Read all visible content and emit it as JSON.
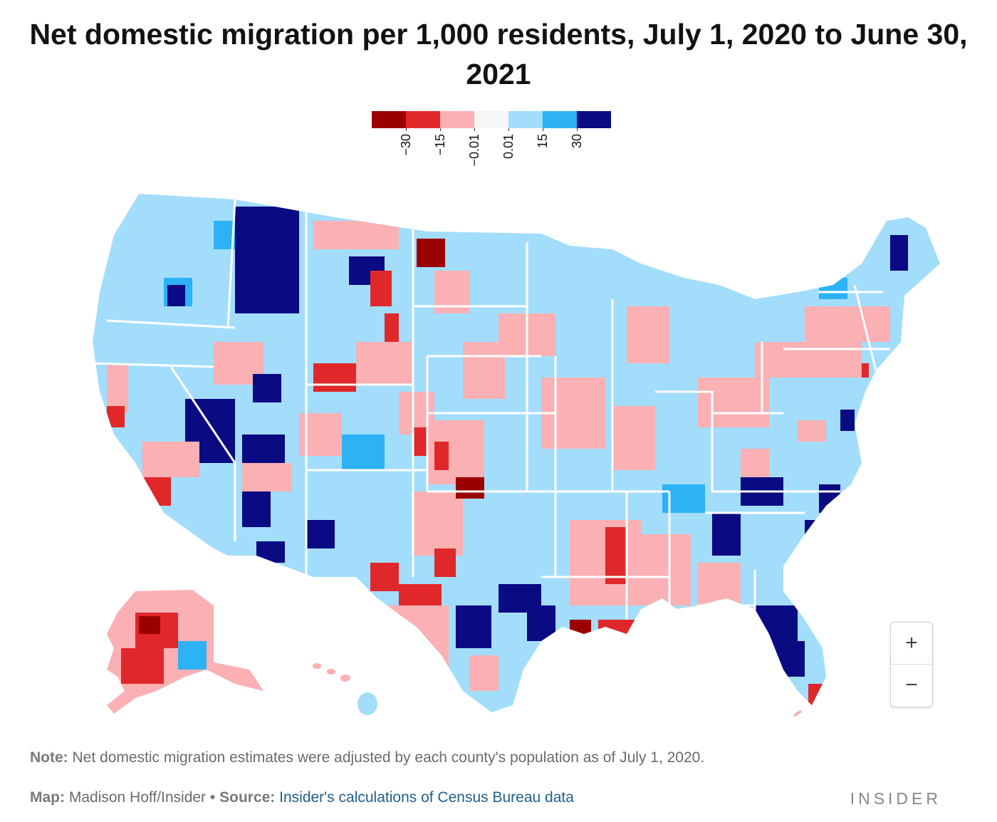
{
  "title": "Net domestic migration per 1,000 residents, July 1, 2020 to June 30, 2021",
  "legend": {
    "colors": [
      "#9b0000",
      "#e0282a",
      "#fbb0b4",
      "#f7f7f7",
      "#a3ddfc",
      "#2cb2f5",
      "#0a0a82"
    ],
    "ticks": [
      "−30",
      "−15",
      "−0.01",
      "0.01",
      "15",
      "30"
    ]
  },
  "map": {
    "region": "United States counties",
    "insets": [
      "Alaska",
      "Hawaii"
    ]
  },
  "zoom": {
    "in_label": "+",
    "out_label": "−"
  },
  "note": {
    "label": "Note:",
    "text": "Net domestic migration estimates were adjusted by each county's population as of July 1, 2020."
  },
  "footer": {
    "map_label": "Map:",
    "map_author": "Madison Hoff/Insider",
    "separator": "•",
    "source_label": "Source:",
    "source_text": "Insider's calculations of Census Bureau data"
  },
  "brand": "INSIDER"
}
